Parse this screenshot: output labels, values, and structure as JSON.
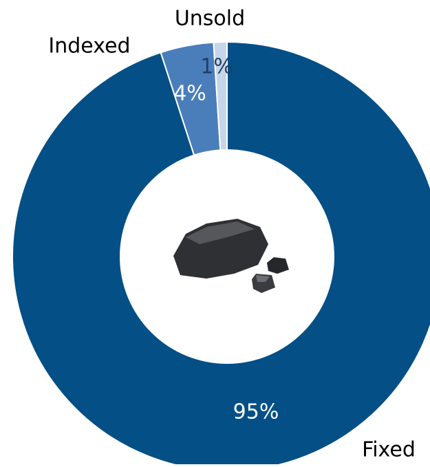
{
  "chart_data": {
    "type": "donut",
    "categories": [
      "Fixed",
      "Indexed",
      "Unsold"
    ],
    "values": [
      95,
      4,
      1
    ],
    "value_labels": [
      "95%",
      "4%",
      "1%"
    ],
    "colors": [
      "#034f86",
      "#4a7ebb",
      "#c6d6ea"
    ]
  }
}
